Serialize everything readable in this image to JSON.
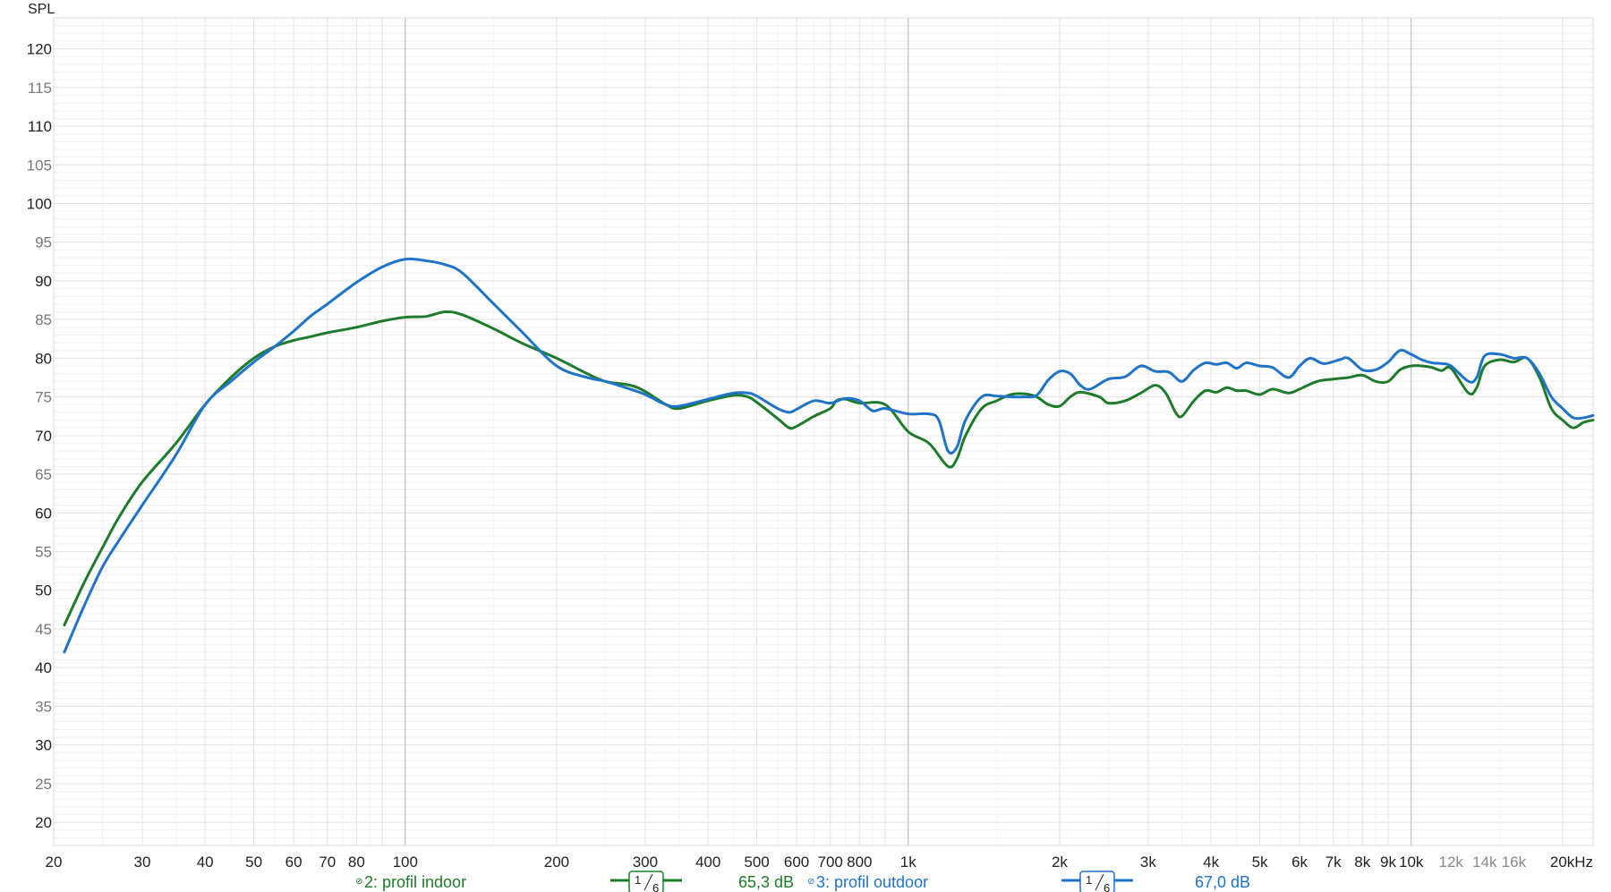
{
  "chart_data": {
    "type": "line",
    "title": "",
    "ylabel": "SPL",
    "xlabel": "",
    "x_scale": "log",
    "xlim": [
      20,
      23000
    ],
    "ylim": [
      17,
      124
    ],
    "grid": true,
    "y_ticks": [
      {
        "value": 120,
        "label": "120",
        "major": true
      },
      {
        "value": 115,
        "label": "115",
        "major": false
      },
      {
        "value": 110,
        "label": "110",
        "major": true
      },
      {
        "value": 105,
        "label": "105",
        "major": false
      },
      {
        "value": 100,
        "label": "100",
        "major": true
      },
      {
        "value": 95,
        "label": "95",
        "major": false
      },
      {
        "value": 90,
        "label": "90",
        "major": true
      },
      {
        "value": 85,
        "label": "85",
        "major": false
      },
      {
        "value": 80,
        "label": "80",
        "major": true
      },
      {
        "value": 75,
        "label": "75",
        "major": false
      },
      {
        "value": 70,
        "label": "70",
        "major": true
      },
      {
        "value": 65,
        "label": "65",
        "major": false
      },
      {
        "value": 60,
        "label": "60",
        "major": true
      },
      {
        "value": 55,
        "label": "55",
        "major": false
      },
      {
        "value": 50,
        "label": "50",
        "major": true
      },
      {
        "value": 45,
        "label": "45",
        "major": false
      },
      {
        "value": 40,
        "label": "40",
        "major": true
      },
      {
        "value": 35,
        "label": "35",
        "major": false
      },
      {
        "value": 30,
        "label": "30",
        "major": true
      },
      {
        "value": 25,
        "label": "25",
        "major": false
      },
      {
        "value": 20,
        "label": "20",
        "major": true
      }
    ],
    "x_ticks": [
      {
        "value": 20,
        "label": "20",
        "major": true
      },
      {
        "value": 30,
        "label": "30",
        "major": true
      },
      {
        "value": 40,
        "label": "40",
        "major": true
      },
      {
        "value": 50,
        "label": "50",
        "major": true
      },
      {
        "value": 60,
        "label": "60",
        "major": true
      },
      {
        "value": 70,
        "label": "70",
        "major": true
      },
      {
        "value": 80,
        "label": "80",
        "major": true
      },
      {
        "value": 100,
        "label": "100",
        "major": true
      },
      {
        "value": 200,
        "label": "200",
        "major": true
      },
      {
        "value": 300,
        "label": "300",
        "major": true
      },
      {
        "value": 400,
        "label": "400",
        "major": true
      },
      {
        "value": 500,
        "label": "500",
        "major": true
      },
      {
        "value": 600,
        "label": "600",
        "major": true
      },
      {
        "value": 700,
        "label": "700",
        "major": true
      },
      {
        "value": 800,
        "label": "800",
        "major": true
      },
      {
        "value": 1000,
        "label": "1k",
        "major": true
      },
      {
        "value": 2000,
        "label": "2k",
        "major": true
      },
      {
        "value": 3000,
        "label": "3k",
        "major": true
      },
      {
        "value": 4000,
        "label": "4k",
        "major": true
      },
      {
        "value": 5000,
        "label": "5k",
        "major": true
      },
      {
        "value": 6000,
        "label": "6k",
        "major": true
      },
      {
        "value": 7000,
        "label": "7k",
        "major": true
      },
      {
        "value": 8000,
        "label": "8k",
        "major": true
      },
      {
        "value": 9000,
        "label": "9k",
        "major": true
      },
      {
        "value": 10000,
        "label": "10k",
        "major": true
      },
      {
        "value": 12000,
        "label": "12k",
        "major": false
      },
      {
        "value": 14000,
        "label": "14k",
        "major": false
      },
      {
        "value": 16000,
        "label": "16k",
        "major": false
      },
      {
        "value": 20000,
        "label": "20kHz",
        "major": true
      }
    ],
    "series": [
      {
        "name": "2: profil indoor",
        "color": "#1e7b2b",
        "smoothing": "1/6",
        "level": "65,3 dB",
        "points": [
          [
            21,
            45.5
          ],
          [
            23,
            51
          ],
          [
            25,
            55.5
          ],
          [
            27,
            59.5
          ],
          [
            30,
            64
          ],
          [
            35,
            69
          ],
          [
            40,
            74
          ],
          [
            45,
            77.5
          ],
          [
            50,
            80
          ],
          [
            55,
            81.5
          ],
          [
            60,
            82.3
          ],
          [
            65,
            82.8
          ],
          [
            70,
            83.3
          ],
          [
            80,
            84
          ],
          [
            90,
            84.8
          ],
          [
            100,
            85.3
          ],
          [
            110,
            85.4
          ],
          [
            120,
            86
          ],
          [
            130,
            85.6
          ],
          [
            150,
            83.8
          ],
          [
            170,
            82
          ],
          [
            200,
            80
          ],
          [
            230,
            78
          ],
          [
            250,
            77
          ],
          [
            280,
            76.5
          ],
          [
            300,
            75.7
          ],
          [
            330,
            74
          ],
          [
            350,
            73.5
          ],
          [
            400,
            74.5
          ],
          [
            450,
            75.2
          ],
          [
            480,
            75
          ],
          [
            500,
            74.3
          ],
          [
            550,
            72.2
          ],
          [
            580,
            71
          ],
          [
            600,
            71.2
          ],
          [
            650,
            72.5
          ],
          [
            700,
            73.5
          ],
          [
            720,
            74.5
          ],
          [
            750,
            74.7
          ],
          [
            800,
            74.2
          ],
          [
            900,
            74
          ],
          [
            1000,
            70.5
          ],
          [
            1100,
            69
          ],
          [
            1200,
            66
          ],
          [
            1250,
            67
          ],
          [
            1300,
            70
          ],
          [
            1400,
            73.5
          ],
          [
            1500,
            74.5
          ],
          [
            1600,
            75.3
          ],
          [
            1700,
            75.4
          ],
          [
            1800,
            75
          ],
          [
            1900,
            74
          ],
          [
            2000,
            73.8
          ],
          [
            2100,
            75
          ],
          [
            2200,
            75.6
          ],
          [
            2400,
            75
          ],
          [
            2500,
            74.2
          ],
          [
            2700,
            74.5
          ],
          [
            2900,
            75.5
          ],
          [
            3100,
            76.5
          ],
          [
            3250,
            75.5
          ],
          [
            3400,
            73
          ],
          [
            3500,
            72.5
          ],
          [
            3700,
            74.5
          ],
          [
            3900,
            75.8
          ],
          [
            4100,
            75.6
          ],
          [
            4300,
            76.2
          ],
          [
            4500,
            75.8
          ],
          [
            4700,
            75.8
          ],
          [
            5000,
            75.3
          ],
          [
            5300,
            76
          ],
          [
            5700,
            75.5
          ],
          [
            6000,
            76
          ],
          [
            6500,
            77
          ],
          [
            7000,
            77.3
          ],
          [
            7500,
            77.5
          ],
          [
            8000,
            77.8
          ],
          [
            8500,
            77
          ],
          [
            9000,
            77
          ],
          [
            9500,
            78.5
          ],
          [
            10000,
            79
          ],
          [
            10500,
            79
          ],
          [
            11000,
            78.8
          ],
          [
            11500,
            78.4
          ],
          [
            12000,
            78.7
          ],
          [
            13000,
            75.5
          ],
          [
            13500,
            76.2
          ],
          [
            14000,
            79
          ],
          [
            15000,
            79.8
          ],
          [
            16000,
            79.5
          ],
          [
            17000,
            80
          ],
          [
            18000,
            77.5
          ],
          [
            19000,
            73.5
          ],
          [
            20000,
            72
          ],
          [
            21000,
            71
          ],
          [
            22000,
            71.7
          ],
          [
            23000,
            72
          ]
        ]
      },
      {
        "name": "3: profil outdoor",
        "color": "#1f73c8",
        "smoothing": "1/6",
        "level": "67,0 dB",
        "points": [
          [
            21,
            42
          ],
          [
            23,
            48
          ],
          [
            25,
            53
          ],
          [
            27,
            56.5
          ],
          [
            30,
            61
          ],
          [
            35,
            67.5
          ],
          [
            40,
            74
          ],
          [
            45,
            77
          ],
          [
            50,
            79.5
          ],
          [
            55,
            81.5
          ],
          [
            60,
            83.5
          ],
          [
            65,
            85.5
          ],
          [
            70,
            87
          ],
          [
            80,
            89.8
          ],
          [
            90,
            91.8
          ],
          [
            100,
            92.8
          ],
          [
            110,
            92.6
          ],
          [
            120,
            92.1
          ],
          [
            130,
            91
          ],
          [
            150,
            87
          ],
          [
            170,
            83.5
          ],
          [
            200,
            79
          ],
          [
            230,
            77.5
          ],
          [
            250,
            77
          ],
          [
            280,
            76
          ],
          [
            300,
            75.3
          ],
          [
            330,
            74
          ],
          [
            350,
            73.8
          ],
          [
            400,
            74.7
          ],
          [
            450,
            75.5
          ],
          [
            480,
            75.5
          ],
          [
            500,
            75.1
          ],
          [
            550,
            73.5
          ],
          [
            580,
            73
          ],
          [
            600,
            73.4
          ],
          [
            650,
            74.5
          ],
          [
            700,
            74.2
          ],
          [
            750,
            74.8
          ],
          [
            800,
            74.5
          ],
          [
            850,
            73.2
          ],
          [
            900,
            73.5
          ],
          [
            1000,
            72.8
          ],
          [
            1100,
            72.8
          ],
          [
            1150,
            72
          ],
          [
            1200,
            68
          ],
          [
            1250,
            68.5
          ],
          [
            1300,
            72
          ],
          [
            1400,
            75
          ],
          [
            1500,
            75.1
          ],
          [
            1600,
            75
          ],
          [
            1700,
            75
          ],
          [
            1800,
            75.2
          ],
          [
            1900,
            77.2
          ],
          [
            2000,
            78.3
          ],
          [
            2100,
            78
          ],
          [
            2200,
            76.5
          ],
          [
            2300,
            76
          ],
          [
            2500,
            77.3
          ],
          [
            2700,
            77.6
          ],
          [
            2900,
            79
          ],
          [
            3100,
            78.3
          ],
          [
            3300,
            78.2
          ],
          [
            3500,
            77
          ],
          [
            3700,
            78.5
          ],
          [
            3900,
            79.4
          ],
          [
            4100,
            79.2
          ],
          [
            4300,
            79.4
          ],
          [
            4500,
            78.7
          ],
          [
            4700,
            79.4
          ],
          [
            5000,
            79
          ],
          [
            5300,
            78.8
          ],
          [
            5700,
            77.5
          ],
          [
            6000,
            79
          ],
          [
            6300,
            80
          ],
          [
            6700,
            79.3
          ],
          [
            7200,
            79.8
          ],
          [
            7500,
            80
          ],
          [
            8000,
            78.5
          ],
          [
            8500,
            78.5
          ],
          [
            9000,
            79.5
          ],
          [
            9500,
            81
          ],
          [
            10000,
            80.5
          ],
          [
            10500,
            79.8
          ],
          [
            11000,
            79.4
          ],
          [
            11500,
            79.3
          ],
          [
            12000,
            79
          ],
          [
            13000,
            77
          ],
          [
            13500,
            77.5
          ],
          [
            14000,
            80.3
          ],
          [
            15000,
            80.5
          ],
          [
            16000,
            80
          ],
          [
            17000,
            80
          ],
          [
            18000,
            78
          ],
          [
            19000,
            75
          ],
          [
            20000,
            73.5
          ],
          [
            21000,
            72.3
          ],
          [
            22000,
            72.3
          ],
          [
            23000,
            72.6
          ]
        ]
      }
    ]
  },
  "legend": {
    "items": [
      {
        "label": "2: profil indoor",
        "pin": "⊘",
        "smoothing_num": "1",
        "smoothing_den": "6",
        "level": "65,3 dB",
        "color": "#1e7b2b"
      },
      {
        "label": "3: profil outdoor",
        "pin": "⊘",
        "smoothing_num": "1",
        "smoothing_den": "6",
        "level": "67,0 dB",
        "color": "#1f73c8"
      }
    ]
  }
}
